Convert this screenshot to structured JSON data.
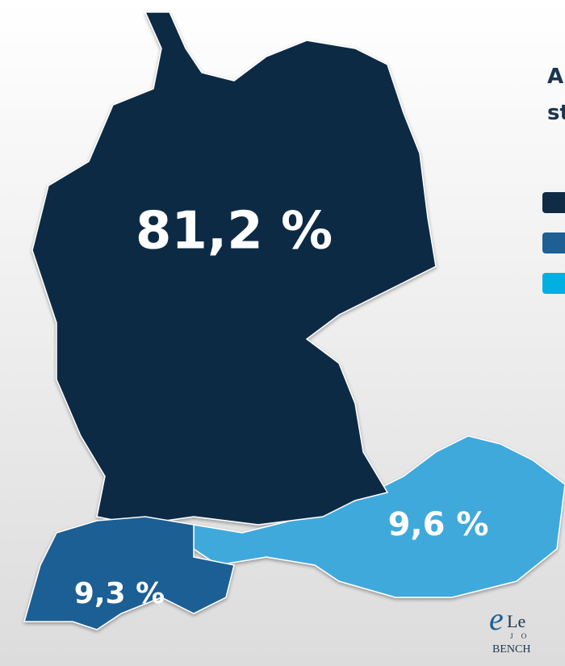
{
  "title_lines": [
    "A",
    "st"
  ],
  "regions": [
    {
      "label": "81,2 %",
      "color": "#0f2b45"
    },
    {
      "label": "9,6 %",
      "color": "#3fa9dc"
    },
    {
      "label": "9,3 %",
      "color": "#1e5f94"
    }
  ],
  "legend_colors": [
    "#0f2b45",
    "#1e5f94",
    "#00b0e0"
  ],
  "logo": {
    "mark": "e",
    "name": "Le",
    "sub": "J O",
    "footer": "BENCH"
  }
}
